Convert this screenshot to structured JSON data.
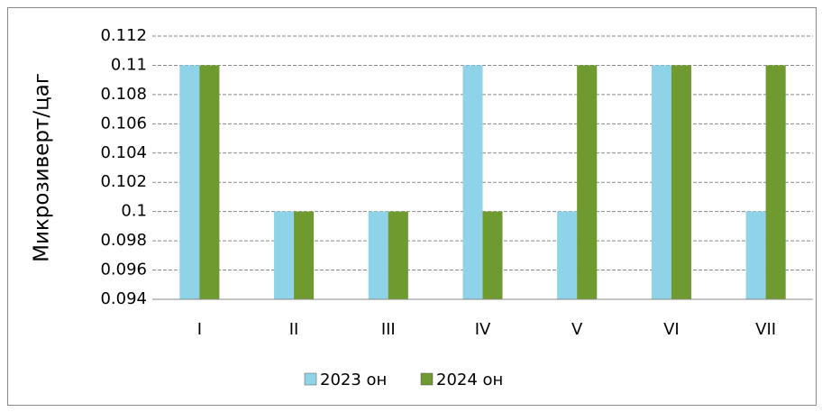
{
  "chart_data": {
    "type": "bar",
    "y_label": "Микрозиверт/цаг",
    "categories": [
      "I",
      "II",
      "III",
      "IV",
      "V",
      "VI",
      "VII"
    ],
    "series": [
      {
        "name": "2023 он",
        "color": "#8fd3e8",
        "values": [
          0.11,
          0.1,
          0.1,
          0.11,
          0.1,
          0.11,
          0.1
        ]
      },
      {
        "name": "2024 он",
        "color": "#6f9a30",
        "values": [
          0.11,
          0.1,
          0.1,
          0.1,
          0.11,
          0.11,
          0.11
        ]
      }
    ],
    "ylim": [
      0.094,
      0.112
    ],
    "yticks": [
      0.094,
      0.096,
      0.098,
      0.1,
      0.102,
      0.104,
      0.106,
      0.108,
      0.11,
      0.112
    ],
    "grid": true,
    "legend": "bottom"
  }
}
